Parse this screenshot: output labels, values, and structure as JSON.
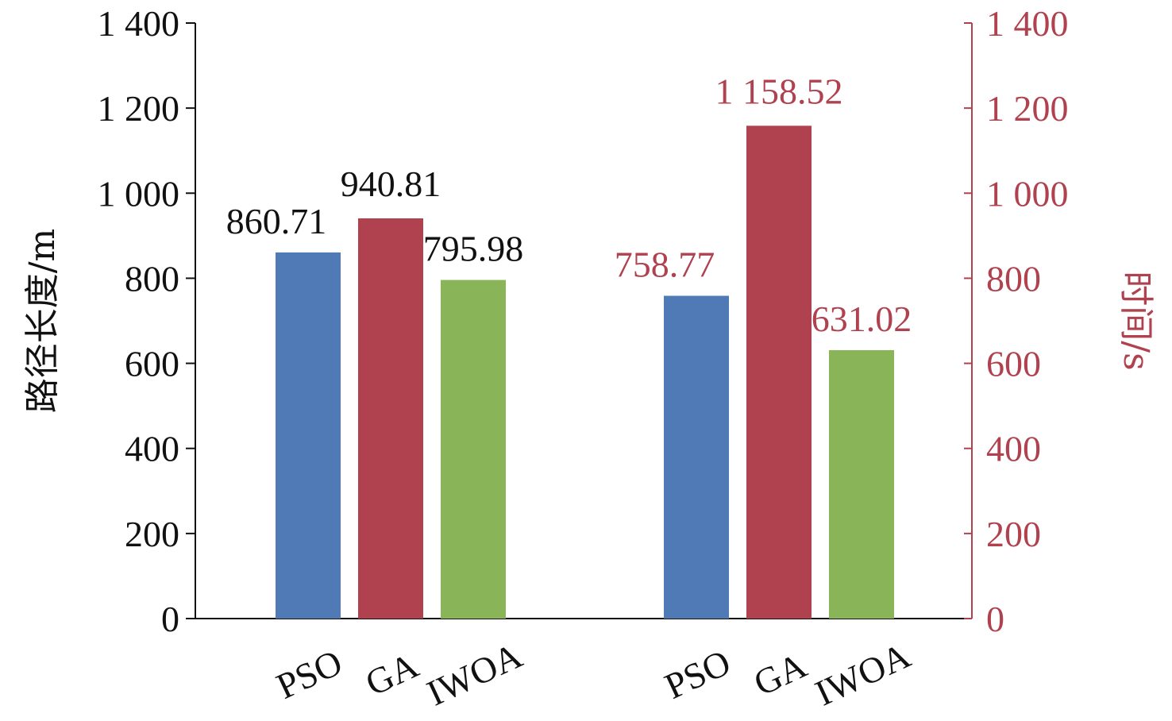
{
  "chart_data": {
    "type": "bar",
    "groups": [
      {
        "axis": "left",
        "categories": [
          "PSO",
          "GA",
          "IWOA"
        ],
        "values": [
          860.71,
          940.81,
          795.98
        ],
        "labels": [
          "860.71",
          "940.81",
          "795.98"
        ]
      },
      {
        "axis": "right",
        "categories": [
          "PSO",
          "GA",
          "IWOA"
        ],
        "values": [
          758.77,
          1158.52,
          631.02
        ],
        "labels": [
          "758.77",
          "1 158.52",
          "631.02"
        ]
      }
    ],
    "bar_colors": [
      "#4f7ab6",
      "#b04250",
      "#89b457"
    ],
    "left_axis": {
      "label": "路径长度/m",
      "ylim": [
        0,
        1400
      ],
      "ticks": [
        0,
        200,
        400,
        600,
        800,
        1000,
        1200,
        1400
      ],
      "tick_labels": [
        "0",
        "200",
        "400",
        "600",
        "800",
        "1 000",
        "1 200",
        "1 400"
      ],
      "color": "#111111"
    },
    "right_axis": {
      "label": "时间/s",
      "ylim": [
        0,
        1400
      ],
      "ticks": [
        0,
        200,
        400,
        600,
        800,
        1000,
        1200,
        1400
      ],
      "tick_labels": [
        "0",
        "200",
        "400",
        "600",
        "800",
        "1 000",
        "1 200",
        "1 400"
      ],
      "color": "#b04250"
    },
    "grid": false,
    "legend": "none"
  }
}
